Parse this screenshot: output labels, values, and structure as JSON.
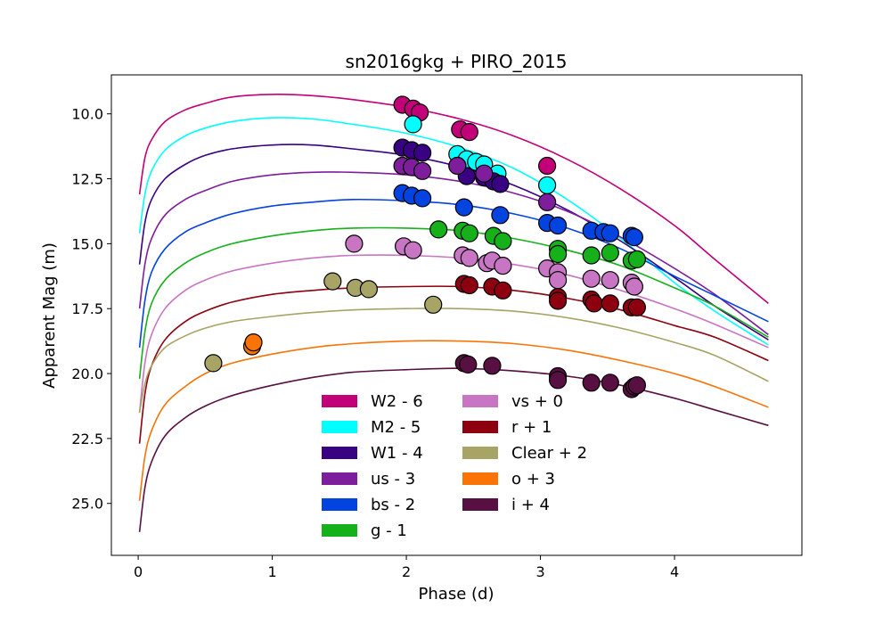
{
  "chart_data": {
    "type": "scatter",
    "title": "sn2016gkg + PIRO_2015",
    "xlabel": "Phase (d)",
    "ylabel": "Apparent Mag (m)",
    "xlim": [
      -0.2,
      4.95
    ],
    "ylim": [
      27.0,
      8.5
    ],
    "y_inverted": true,
    "xticks": [
      0,
      1,
      2,
      3,
      4
    ],
    "yticks": [
      10.0,
      12.5,
      15.0,
      17.5,
      20.0,
      22.5,
      25.0
    ],
    "xtick_labels": [
      "0",
      "1",
      "2",
      "3",
      "4"
    ],
    "ytick_labels": [
      "10.0",
      "12.5",
      "15.0",
      "17.5",
      "20.0",
      "22.5",
      "25.0"
    ],
    "grid": false,
    "legend_placement": "lower center, two columns",
    "series": [
      {
        "name": "W2 - 6",
        "color": "#c20078",
        "curve": [
          [
            0.01,
            13.1
          ],
          [
            0.05,
            11.7
          ],
          [
            0.1,
            11.0
          ],
          [
            0.2,
            10.3
          ],
          [
            0.35,
            9.85
          ],
          [
            0.5,
            9.6
          ],
          [
            0.7,
            9.35
          ],
          [
            1.0,
            9.25
          ],
          [
            1.3,
            9.3
          ],
          [
            1.6,
            9.45
          ],
          [
            2.0,
            9.75
          ],
          [
            2.4,
            10.2
          ],
          [
            2.8,
            10.85
          ],
          [
            3.2,
            11.75
          ],
          [
            3.6,
            12.9
          ],
          [
            4.0,
            14.3
          ],
          [
            4.3,
            15.6
          ],
          [
            4.7,
            17.3
          ]
        ],
        "points": [
          [
            1.97,
            9.65
          ],
          [
            2.05,
            9.8
          ],
          [
            2.1,
            9.95
          ],
          [
            2.4,
            10.6
          ],
          [
            2.47,
            10.7
          ],
          [
            3.05,
            12.0
          ]
        ]
      },
      {
        "name": "M2 - 5",
        "color": "#00ffff",
        "curve": [
          [
            0.01,
            14.6
          ],
          [
            0.05,
            13.1
          ],
          [
            0.1,
            12.2
          ],
          [
            0.2,
            11.4
          ],
          [
            0.35,
            10.85
          ],
          [
            0.5,
            10.55
          ],
          [
            0.7,
            10.3
          ],
          [
            1.0,
            10.15
          ],
          [
            1.3,
            10.2
          ],
          [
            1.6,
            10.4
          ],
          [
            2.0,
            10.75
          ],
          [
            2.4,
            11.3
          ],
          [
            2.8,
            12.1
          ],
          [
            3.2,
            13.3
          ],
          [
            3.6,
            14.8
          ],
          [
            4.0,
            16.5
          ],
          [
            4.3,
            17.6
          ],
          [
            4.7,
            18.9
          ]
        ],
        "points": [
          [
            2.05,
            10.4
          ],
          [
            2.38,
            11.55
          ],
          [
            2.45,
            11.75
          ],
          [
            2.52,
            11.85
          ],
          [
            2.58,
            11.95
          ],
          [
            2.68,
            12.3
          ],
          [
            3.05,
            12.75
          ]
        ]
      },
      {
        "name": "W1 - 4",
        "color": "#380282",
        "curve": [
          [
            0.01,
            15.8
          ],
          [
            0.05,
            14.2
          ],
          [
            0.1,
            13.3
          ],
          [
            0.2,
            12.5
          ],
          [
            0.35,
            11.95
          ],
          [
            0.5,
            11.6
          ],
          [
            0.7,
            11.35
          ],
          [
            1.0,
            11.2
          ],
          [
            1.3,
            11.2
          ],
          [
            1.6,
            11.35
          ],
          [
            2.0,
            11.6
          ],
          [
            2.4,
            12.05
          ],
          [
            2.8,
            12.75
          ],
          [
            3.2,
            13.7
          ],
          [
            3.6,
            14.9
          ],
          [
            4.0,
            16.3
          ],
          [
            4.3,
            17.4
          ],
          [
            4.7,
            18.7
          ]
        ],
        "points": [
          [
            1.97,
            11.3
          ],
          [
            2.04,
            11.4
          ],
          [
            2.12,
            11.5
          ],
          [
            2.38,
            12.0
          ],
          [
            2.45,
            12.4
          ],
          [
            2.58,
            12.45
          ],
          [
            2.65,
            12.6
          ],
          [
            2.7,
            12.7
          ]
        ]
      },
      {
        "name": "us - 3",
        "color": "#7e1e9c",
        "curve": [
          [
            0.01,
            17.5
          ],
          [
            0.05,
            15.8
          ],
          [
            0.1,
            14.8
          ],
          [
            0.2,
            13.9
          ],
          [
            0.35,
            13.3
          ],
          [
            0.5,
            12.95
          ],
          [
            0.7,
            12.6
          ],
          [
            1.0,
            12.35
          ],
          [
            1.3,
            12.25
          ],
          [
            1.6,
            12.25
          ],
          [
            2.0,
            12.35
          ],
          [
            2.4,
            12.6
          ],
          [
            2.8,
            13.05
          ],
          [
            3.2,
            13.75
          ],
          [
            3.6,
            14.75
          ],
          [
            4.0,
            15.95
          ],
          [
            4.3,
            16.95
          ],
          [
            4.7,
            18.5
          ]
        ],
        "points": [
          [
            1.97,
            12.0
          ],
          [
            2.04,
            12.05
          ],
          [
            2.12,
            12.2
          ],
          [
            2.38,
            12.0
          ],
          [
            2.58,
            12.3
          ],
          [
            3.05,
            13.4
          ]
        ]
      },
      {
        "name": "bs - 2",
        "color": "#0343df",
        "curve": [
          [
            0.01,
            19.0
          ],
          [
            0.05,
            17.2
          ],
          [
            0.1,
            16.1
          ],
          [
            0.2,
            15.2
          ],
          [
            0.35,
            14.55
          ],
          [
            0.5,
            14.2
          ],
          [
            0.7,
            13.85
          ],
          [
            1.0,
            13.55
          ],
          [
            1.3,
            13.4
          ],
          [
            1.6,
            13.3
          ],
          [
            2.0,
            13.35
          ],
          [
            2.4,
            13.5
          ],
          [
            2.8,
            13.85
          ],
          [
            3.2,
            14.4
          ],
          [
            3.6,
            15.2
          ],
          [
            4.0,
            16.25
          ],
          [
            4.3,
            17.0
          ],
          [
            4.7,
            18.0
          ]
        ],
        "points": [
          [
            1.97,
            13.05
          ],
          [
            2.04,
            13.15
          ],
          [
            2.12,
            13.25
          ],
          [
            2.43,
            13.6
          ],
          [
            2.7,
            13.9
          ],
          [
            3.05,
            14.2
          ],
          [
            3.13,
            14.3
          ],
          [
            3.38,
            14.5
          ],
          [
            3.47,
            14.55
          ],
          [
            3.52,
            14.6
          ],
          [
            3.68,
            14.7
          ],
          [
            3.7,
            14.75
          ]
        ]
      },
      {
        "name": "g - 1",
        "color": "#15b01a",
        "curve": [
          [
            0.01,
            20.2
          ],
          [
            0.05,
            18.4
          ],
          [
            0.1,
            17.3
          ],
          [
            0.2,
            16.4
          ],
          [
            0.35,
            15.75
          ],
          [
            0.5,
            15.35
          ],
          [
            0.7,
            15.0
          ],
          [
            1.0,
            14.7
          ],
          [
            1.3,
            14.5
          ],
          [
            1.6,
            14.4
          ],
          [
            2.0,
            14.4
          ],
          [
            2.4,
            14.5
          ],
          [
            2.8,
            14.8
          ],
          [
            3.2,
            15.25
          ],
          [
            3.6,
            15.85
          ],
          [
            4.0,
            16.7
          ],
          [
            4.3,
            17.4
          ],
          [
            4.7,
            18.6
          ]
        ],
        "points": [
          [
            2.24,
            14.45
          ],
          [
            2.42,
            14.5
          ],
          [
            2.47,
            14.6
          ],
          [
            2.65,
            14.7
          ],
          [
            2.72,
            14.9
          ],
          [
            3.13,
            15.2
          ],
          [
            3.13,
            15.4
          ],
          [
            3.38,
            15.45
          ],
          [
            3.52,
            15.35
          ],
          [
            3.68,
            15.65
          ],
          [
            3.72,
            15.6
          ]
        ]
      },
      {
        "name": "vs + 0",
        "color": "#c875c4",
        "curve": [
          [
            0.01,
            21.5
          ],
          [
            0.05,
            19.6
          ],
          [
            0.1,
            18.5
          ],
          [
            0.2,
            17.5
          ],
          [
            0.35,
            16.8
          ],
          [
            0.5,
            16.4
          ],
          [
            0.7,
            16.05
          ],
          [
            1.0,
            15.75
          ],
          [
            1.3,
            15.55
          ],
          [
            1.6,
            15.45
          ],
          [
            2.0,
            15.45
          ],
          [
            2.4,
            15.55
          ],
          [
            2.8,
            15.8
          ],
          [
            3.2,
            16.2
          ],
          [
            3.6,
            16.8
          ],
          [
            4.0,
            17.5
          ],
          [
            4.3,
            18.1
          ],
          [
            4.7,
            19.0
          ]
        ],
        "points": [
          [
            1.61,
            15.0
          ],
          [
            1.98,
            15.1
          ],
          [
            2.05,
            15.25
          ],
          [
            2.42,
            15.45
          ],
          [
            2.47,
            15.55
          ],
          [
            2.6,
            15.75
          ],
          [
            2.64,
            15.65
          ],
          [
            2.72,
            15.85
          ],
          [
            3.05,
            15.95
          ],
          [
            3.13,
            16.1
          ],
          [
            3.13,
            16.4
          ],
          [
            3.38,
            16.35
          ],
          [
            3.52,
            16.4
          ],
          [
            3.68,
            16.5
          ],
          [
            3.7,
            16.65
          ]
        ]
      },
      {
        "name": "r + 1",
        "color": "#8c000f",
        "curve": [
          [
            0.01,
            22.7
          ],
          [
            0.05,
            20.8
          ],
          [
            0.1,
            19.7
          ],
          [
            0.2,
            18.7
          ],
          [
            0.35,
            18.0
          ],
          [
            0.5,
            17.6
          ],
          [
            0.7,
            17.25
          ],
          [
            1.0,
            16.95
          ],
          [
            1.3,
            16.8
          ],
          [
            1.6,
            16.7
          ],
          [
            2.0,
            16.65
          ],
          [
            2.4,
            16.65
          ],
          [
            2.8,
            16.8
          ],
          [
            3.2,
            17.1
          ],
          [
            3.6,
            17.55
          ],
          [
            4.0,
            18.15
          ],
          [
            4.3,
            18.6
          ],
          [
            4.7,
            19.5
          ]
        ],
        "points": [
          [
            2.43,
            16.55
          ],
          [
            2.47,
            16.6
          ],
          [
            2.64,
            16.65
          ],
          [
            2.72,
            16.8
          ],
          [
            3.13,
            17.05
          ],
          [
            3.13,
            17.2
          ],
          [
            3.38,
            17.15
          ],
          [
            3.4,
            17.3
          ],
          [
            3.52,
            17.3
          ],
          [
            3.68,
            17.45
          ],
          [
            3.72,
            17.45
          ]
        ]
      },
      {
        "name": "Clear + 2",
        "color": "#a8a465",
        "curve": [
          [
            0.01,
            21.5
          ],
          [
            0.05,
            20.4
          ],
          [
            0.1,
            19.7
          ],
          [
            0.2,
            19.0
          ],
          [
            0.35,
            18.55
          ],
          [
            0.5,
            18.25
          ],
          [
            0.7,
            18.0
          ],
          [
            1.0,
            17.8
          ],
          [
            1.3,
            17.65
          ],
          [
            1.6,
            17.55
          ],
          [
            2.0,
            17.5
          ],
          [
            2.4,
            17.5
          ],
          [
            2.8,
            17.6
          ],
          [
            3.2,
            17.85
          ],
          [
            3.6,
            18.25
          ],
          [
            4.0,
            18.8
          ],
          [
            4.3,
            19.3
          ],
          [
            4.7,
            20.3
          ]
        ],
        "points": [
          [
            0.56,
            19.6
          ],
          [
            1.45,
            16.45
          ],
          [
            1.62,
            16.7
          ],
          [
            1.72,
            16.75
          ],
          [
            2.2,
            17.35
          ]
        ]
      },
      {
        "name": "o + 3",
        "color": "#f97306",
        "curve": [
          [
            0.01,
            24.9
          ],
          [
            0.05,
            23.2
          ],
          [
            0.1,
            22.2
          ],
          [
            0.2,
            21.2
          ],
          [
            0.35,
            20.5
          ],
          [
            0.5,
            20.0
          ],
          [
            0.7,
            19.6
          ],
          [
            1.0,
            19.25
          ],
          [
            1.3,
            19.0
          ],
          [
            1.6,
            18.85
          ],
          [
            2.0,
            18.75
          ],
          [
            2.4,
            18.75
          ],
          [
            2.8,
            18.85
          ],
          [
            3.2,
            19.1
          ],
          [
            3.6,
            19.5
          ],
          [
            4.0,
            20.0
          ],
          [
            4.3,
            20.5
          ],
          [
            4.7,
            21.3
          ]
        ],
        "points": [
          [
            0.85,
            18.95
          ],
          [
            0.86,
            18.8
          ]
        ]
      },
      {
        "name": "i + 4",
        "color": "#580f41",
        "curve": [
          [
            0.01,
            26.1
          ],
          [
            0.05,
            24.4
          ],
          [
            0.1,
            23.4
          ],
          [
            0.2,
            22.4
          ],
          [
            0.35,
            21.7
          ],
          [
            0.5,
            21.25
          ],
          [
            0.7,
            20.85
          ],
          [
            1.0,
            20.45
          ],
          [
            1.3,
            20.15
          ],
          [
            1.6,
            19.95
          ],
          [
            2.0,
            19.85
          ],
          [
            2.4,
            19.8
          ],
          [
            2.8,
            19.9
          ],
          [
            3.2,
            20.1
          ],
          [
            3.6,
            20.45
          ],
          [
            4.0,
            20.95
          ],
          [
            4.3,
            21.4
          ],
          [
            4.7,
            22.0
          ]
        ],
        "points": [
          [
            2.43,
            19.6
          ],
          [
            2.46,
            19.65
          ],
          [
            2.64,
            19.7
          ],
          [
            3.13,
            20.1
          ],
          [
            3.13,
            20.25
          ],
          [
            3.38,
            20.35
          ],
          [
            3.52,
            20.35
          ],
          [
            3.68,
            20.6
          ],
          [
            3.7,
            20.5
          ],
          [
            3.72,
            20.45
          ]
        ]
      }
    ]
  }
}
